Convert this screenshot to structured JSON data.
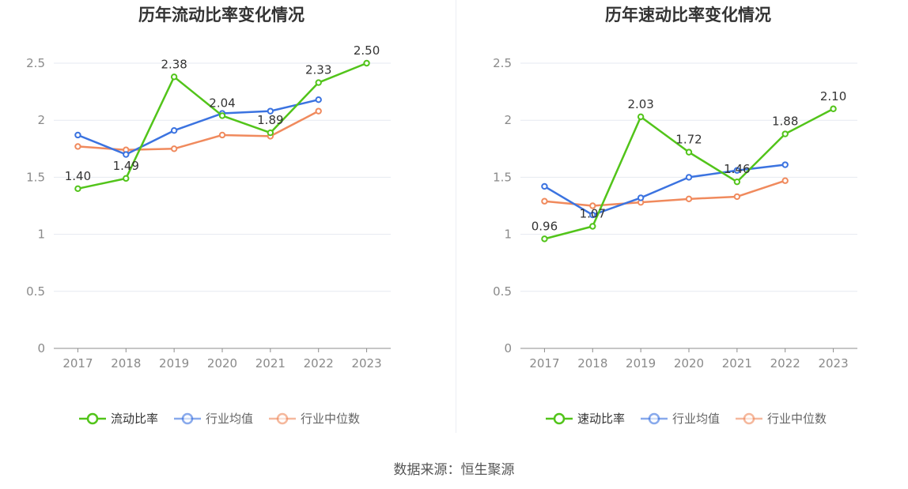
{
  "chart_data": [
    {
      "type": "line",
      "title": "历年流动比率变化情况",
      "categories": [
        "2017",
        "2018",
        "2019",
        "2020",
        "2021",
        "2022",
        "2023"
      ],
      "ylim": [
        0,
        2.5
      ],
      "yticks": [
        "0",
        "0.5",
        "1",
        "1.5",
        "2",
        "2.5"
      ],
      "grid": true,
      "legend_position": "bottom",
      "series": [
        {
          "name": "流动比率",
          "color": "#52c41a",
          "labeled": true,
          "values": [
            1.4,
            1.49,
            2.38,
            2.04,
            1.89,
            2.33,
            2.5
          ],
          "labels": [
            "1.40",
            "1.49",
            "2.38",
            "2.04",
            "1.89",
            "2.33",
            "2.50"
          ]
        },
        {
          "name": "行业均值",
          "color": "#3b73e0",
          "labeled": false,
          "values": [
            1.87,
            1.7,
            1.91,
            2.06,
            2.08,
            2.18,
            null
          ]
        },
        {
          "name": "行业中位数",
          "color": "#f08a5d",
          "labeled": false,
          "values": [
            1.77,
            1.74,
            1.75,
            1.87,
            1.86,
            2.08,
            null
          ]
        }
      ]
    },
    {
      "type": "line",
      "title": "历年速动比率变化情况",
      "categories": [
        "2017",
        "2018",
        "2019",
        "2020",
        "2021",
        "2022",
        "2023"
      ],
      "ylim": [
        0,
        2.5
      ],
      "yticks": [
        "0",
        "0.5",
        "1",
        "1.5",
        "2",
        "2.5"
      ],
      "grid": true,
      "legend_position": "bottom",
      "series": [
        {
          "name": "速动比率",
          "color": "#52c41a",
          "labeled": true,
          "values": [
            0.96,
            1.07,
            2.03,
            1.72,
            1.46,
            1.88,
            2.1
          ],
          "labels": [
            "0.96",
            "1.07",
            "2.03",
            "1.72",
            "1.46",
            "1.88",
            "2.10"
          ]
        },
        {
          "name": "行业均值",
          "color": "#3b73e0",
          "labeled": false,
          "values": [
            1.42,
            1.17,
            1.32,
            1.5,
            1.56,
            1.61,
            null
          ]
        },
        {
          "name": "行业中位数",
          "color": "#f08a5d",
          "labeled": false,
          "values": [
            1.29,
            1.25,
            1.28,
            1.31,
            1.33,
            1.47,
            null
          ]
        }
      ]
    }
  ],
  "source": "数据来源：恒生聚源"
}
